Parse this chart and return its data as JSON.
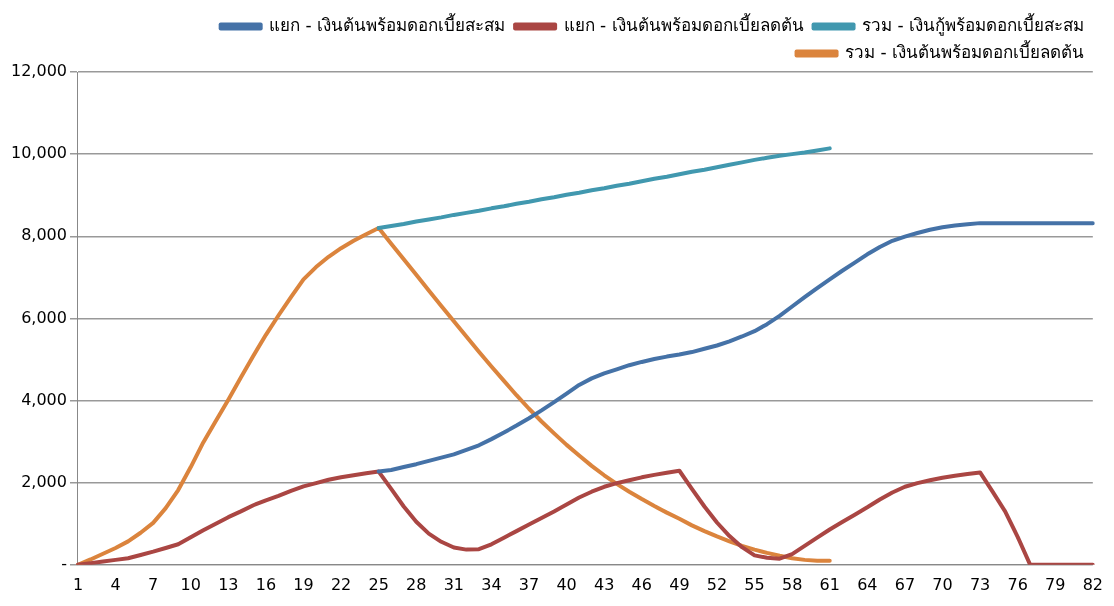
{
  "chart_data": {
    "type": "line",
    "categories": [
      "1",
      null,
      null,
      "4",
      null,
      null,
      "7",
      null,
      null,
      "10",
      null,
      null,
      "13",
      null,
      null,
      "16",
      null,
      null,
      "19",
      null,
      null,
      "22",
      null,
      null,
      "25",
      null,
      null,
      "28",
      null,
      null,
      "31",
      null,
      null,
      "34",
      null,
      null,
      "37",
      null,
      null,
      "40",
      null,
      null,
      "43",
      null,
      null,
      "46",
      null,
      null,
      "49",
      null,
      null,
      "52",
      null,
      null,
      "55",
      null,
      null,
      "58",
      null,
      null,
      "61",
      null,
      null,
      "64",
      null,
      null,
      "67",
      null,
      null,
      "70",
      null,
      null,
      "73",
      null,
      null,
      "76",
      null,
      null,
      "79",
      null,
      null,
      "82"
    ],
    "series": [
      {
        "name": "แยก - เงินต้นพร้อมดอกเบี้ยสะสม",
        "color": "#4572a7",
        "values": [
          null,
          null,
          null,
          null,
          null,
          null,
          null,
          null,
          null,
          null,
          null,
          null,
          null,
          null,
          null,
          null,
          null,
          null,
          null,
          null,
          null,
          null,
          null,
          null,
          2270,
          2310,
          2380,
          2450,
          2530,
          2610,
          2690,
          2800,
          2910,
          3060,
          3220,
          3390,
          3570,
          3760,
          3960,
          4170,
          4380,
          4540,
          4660,
          4760,
          4860,
          4940,
          5010,
          5070,
          5120,
          5180,
          5260,
          5340,
          5440,
          5560,
          5690,
          5860,
          6060,
          6290,
          6520,
          6740,
          6950,
          7160,
          7360,
          7560,
          7740,
          7890,
          7990,
          8080,
          8160,
          8220,
          8260,
          8290,
          8320,
          8320,
          8320,
          8320,
          8320,
          8320,
          8320,
          8320,
          8320,
          8320
        ]
      },
      {
        "name": "แยก - เงินต้นพร้อมดอกเบี้ยลดต้น",
        "color": "#aa4643",
        "values": [
          0,
          40,
          80,
          120,
          160,
          240,
          320,
          410,
          500,
          670,
          840,
          1000,
          1160,
          1300,
          1450,
          1570,
          1680,
          1800,
          1910,
          1990,
          2070,
          2130,
          2180,
          2230,
          2270,
          1850,
          1420,
          1050,
          760,
          560,
          420,
          370,
          380,
          500,
          660,
          820,
          980,
          1140,
          1300,
          1470,
          1640,
          1780,
          1900,
          1990,
          2060,
          2130,
          2190,
          2240,
          2290,
          1850,
          1420,
          1030,
          700,
          430,
          230,
          170,
          150,
          260,
          460,
          660,
          860,
          1040,
          1220,
          1400,
          1590,
          1760,
          1900,
          1990,
          2060,
          2120,
          2170,
          2210,
          2250,
          1780,
          1300,
          680,
          0,
          0,
          0,
          0,
          0,
          0
        ]
      },
      {
        "name": "รวม - เงินกู้พร้อมดอกเบี้ยสะสม",
        "color": "#4198af",
        "values": [
          null,
          null,
          null,
          null,
          null,
          null,
          null,
          null,
          null,
          null,
          null,
          null,
          null,
          null,
          null,
          null,
          null,
          null,
          null,
          null,
          null,
          null,
          null,
          null,
          8200,
          8250,
          8300,
          8360,
          8410,
          8460,
          8520,
          8570,
          8620,
          8680,
          8730,
          8790,
          8840,
          8900,
          8950,
          9010,
          9060,
          9120,
          9170,
          9230,
          9280,
          9340,
          9400,
          9450,
          9510,
          9570,
          9620,
          9680,
          9740,
          9800,
          9860,
          9910,
          9960,
          10000,
          10040,
          10090,
          10140,
          null,
          null,
          null,
          null,
          null,
          null,
          null,
          null,
          null,
          null,
          null,
          null,
          null,
          null,
          null,
          null,
          null,
          null,
          null,
          null,
          null
        ]
      },
      {
        "name": "รวม - เงินต้นพร้อมดอกเบี้ยลดต้น",
        "color": "#db843d",
        "values": [
          0,
          130,
          270,
          410,
          570,
          780,
          1020,
          1380,
          1820,
          2380,
          2980,
          3500,
          4020,
          4560,
          5090,
          5600,
          6070,
          6520,
          6950,
          7250,
          7500,
          7710,
          7890,
          8050,
          8200,
          7820,
          7440,
          7060,
          6680,
          6300,
          5930,
          5560,
          5190,
          4830,
          4480,
          4130,
          3800,
          3490,
          3200,
          2920,
          2660,
          2410,
          2180,
          1970,
          1780,
          1600,
          1430,
          1270,
          1120,
          960,
          820,
          690,
          570,
          460,
          370,
          290,
          220,
          160,
          120,
          100,
          100,
          null,
          null,
          null,
          null,
          null,
          null,
          null,
          null,
          null,
          null,
          null,
          null,
          null,
          null,
          null,
          null,
          null,
          null,
          null,
          null,
          null
        ]
      }
    ],
    "ylim": [
      0,
      12000
    ],
    "yticks": [
      {
        "value": 0,
        "label": "-"
      },
      {
        "value": 2000,
        "label": "2,000"
      },
      {
        "value": 4000,
        "label": "4,000"
      },
      {
        "value": 6000,
        "label": "6,000"
      },
      {
        "value": 8000,
        "label": "8,000"
      },
      {
        "value": 10000,
        "label": "10,000"
      },
      {
        "value": 12000,
        "label": "12,000"
      }
    ],
    "grid": "y",
    "legend": "top right",
    "marker": "none",
    "line_style": "solid"
  }
}
